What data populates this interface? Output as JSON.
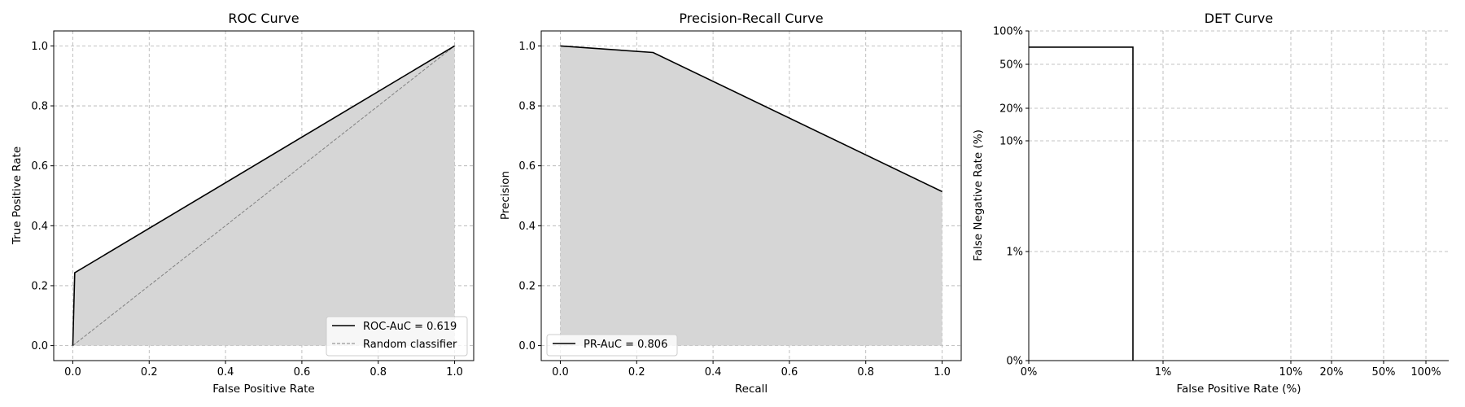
{
  "chart_data": [
    {
      "type": "line",
      "title": "ROC Curve",
      "xlabel": "False Positive Rate",
      "ylabel": "True Positive Rate",
      "xlim": [
        -0.05,
        1.05
      ],
      "ylim": [
        -0.05,
        1.05
      ],
      "xticks": [
        0.0,
        0.2,
        0.4,
        0.6,
        0.8,
        1.0
      ],
      "xtick_labels": [
        "0.0",
        "0.2",
        "0.4",
        "0.6",
        "0.8",
        "1.0"
      ],
      "yticks": [
        0.0,
        0.2,
        0.4,
        0.6,
        0.8,
        1.0
      ],
      "ytick_labels": [
        "0.0",
        "0.2",
        "0.4",
        "0.6",
        "0.8",
        "1.0"
      ],
      "grid": true,
      "legend": "lower-right",
      "series": [
        {
          "name": "ROC-AuC = 0.619",
          "style": "solid",
          "color": "#000000",
          "fill": true,
          "x": [
            0.0,
            0.005,
            1.0
          ],
          "y": [
            0.0,
            0.243,
            1.0
          ]
        },
        {
          "name": "Random classifier",
          "style": "dashed",
          "color": "#808080",
          "fill": false,
          "x": [
            0.0,
            1.0
          ],
          "y": [
            0.0,
            1.0
          ]
        }
      ]
    },
    {
      "type": "line",
      "title": "Precision-Recall Curve",
      "xlabel": "Recall",
      "ylabel": "Precision",
      "xlim": [
        -0.05,
        1.05
      ],
      "ylim": [
        -0.05,
        1.05
      ],
      "xticks": [
        0.0,
        0.2,
        0.4,
        0.6,
        0.8,
        1.0
      ],
      "xtick_labels": [
        "0.0",
        "0.2",
        "0.4",
        "0.6",
        "0.8",
        "1.0"
      ],
      "yticks": [
        0.0,
        0.2,
        0.4,
        0.6,
        0.8,
        1.0
      ],
      "ytick_labels": [
        "0.0",
        "0.2",
        "0.4",
        "0.6",
        "0.8",
        "1.0"
      ],
      "grid": true,
      "legend": "lower-left",
      "series": [
        {
          "name": "PR-AuC = 0.806",
          "style": "solid",
          "color": "#000000",
          "fill": true,
          "x": [
            0.0,
            0.243,
            1.0
          ],
          "y": [
            1.0,
            0.978,
            0.514
          ]
        }
      ]
    },
    {
      "type": "line",
      "title": "DET Curve",
      "xlabel": "False Positive Rate (%)",
      "ylabel": "False Negative Rate (%)",
      "scale": "probit",
      "xticks": [
        0.0,
        0.01,
        0.1,
        0.2,
        0.5,
        1.0
      ],
      "xtick_labels": [
        "0%",
        "1%",
        "10%",
        "20%",
        "50%",
        "100%"
      ],
      "yticks": [
        0.0,
        0.01,
        0.1,
        0.2,
        0.5,
        1.0
      ],
      "ytick_labels": [
        "0%",
        "1%",
        "10%",
        "20%",
        "50%",
        "100%"
      ],
      "grid": true,
      "series": [
        {
          "name": "",
          "style": "solid",
          "color": "#000000",
          "fill": false,
          "x": [
            0.0,
            0.005,
            0.005
          ],
          "y": [
            0.757,
            0.757,
            0.0
          ]
        }
      ]
    }
  ]
}
